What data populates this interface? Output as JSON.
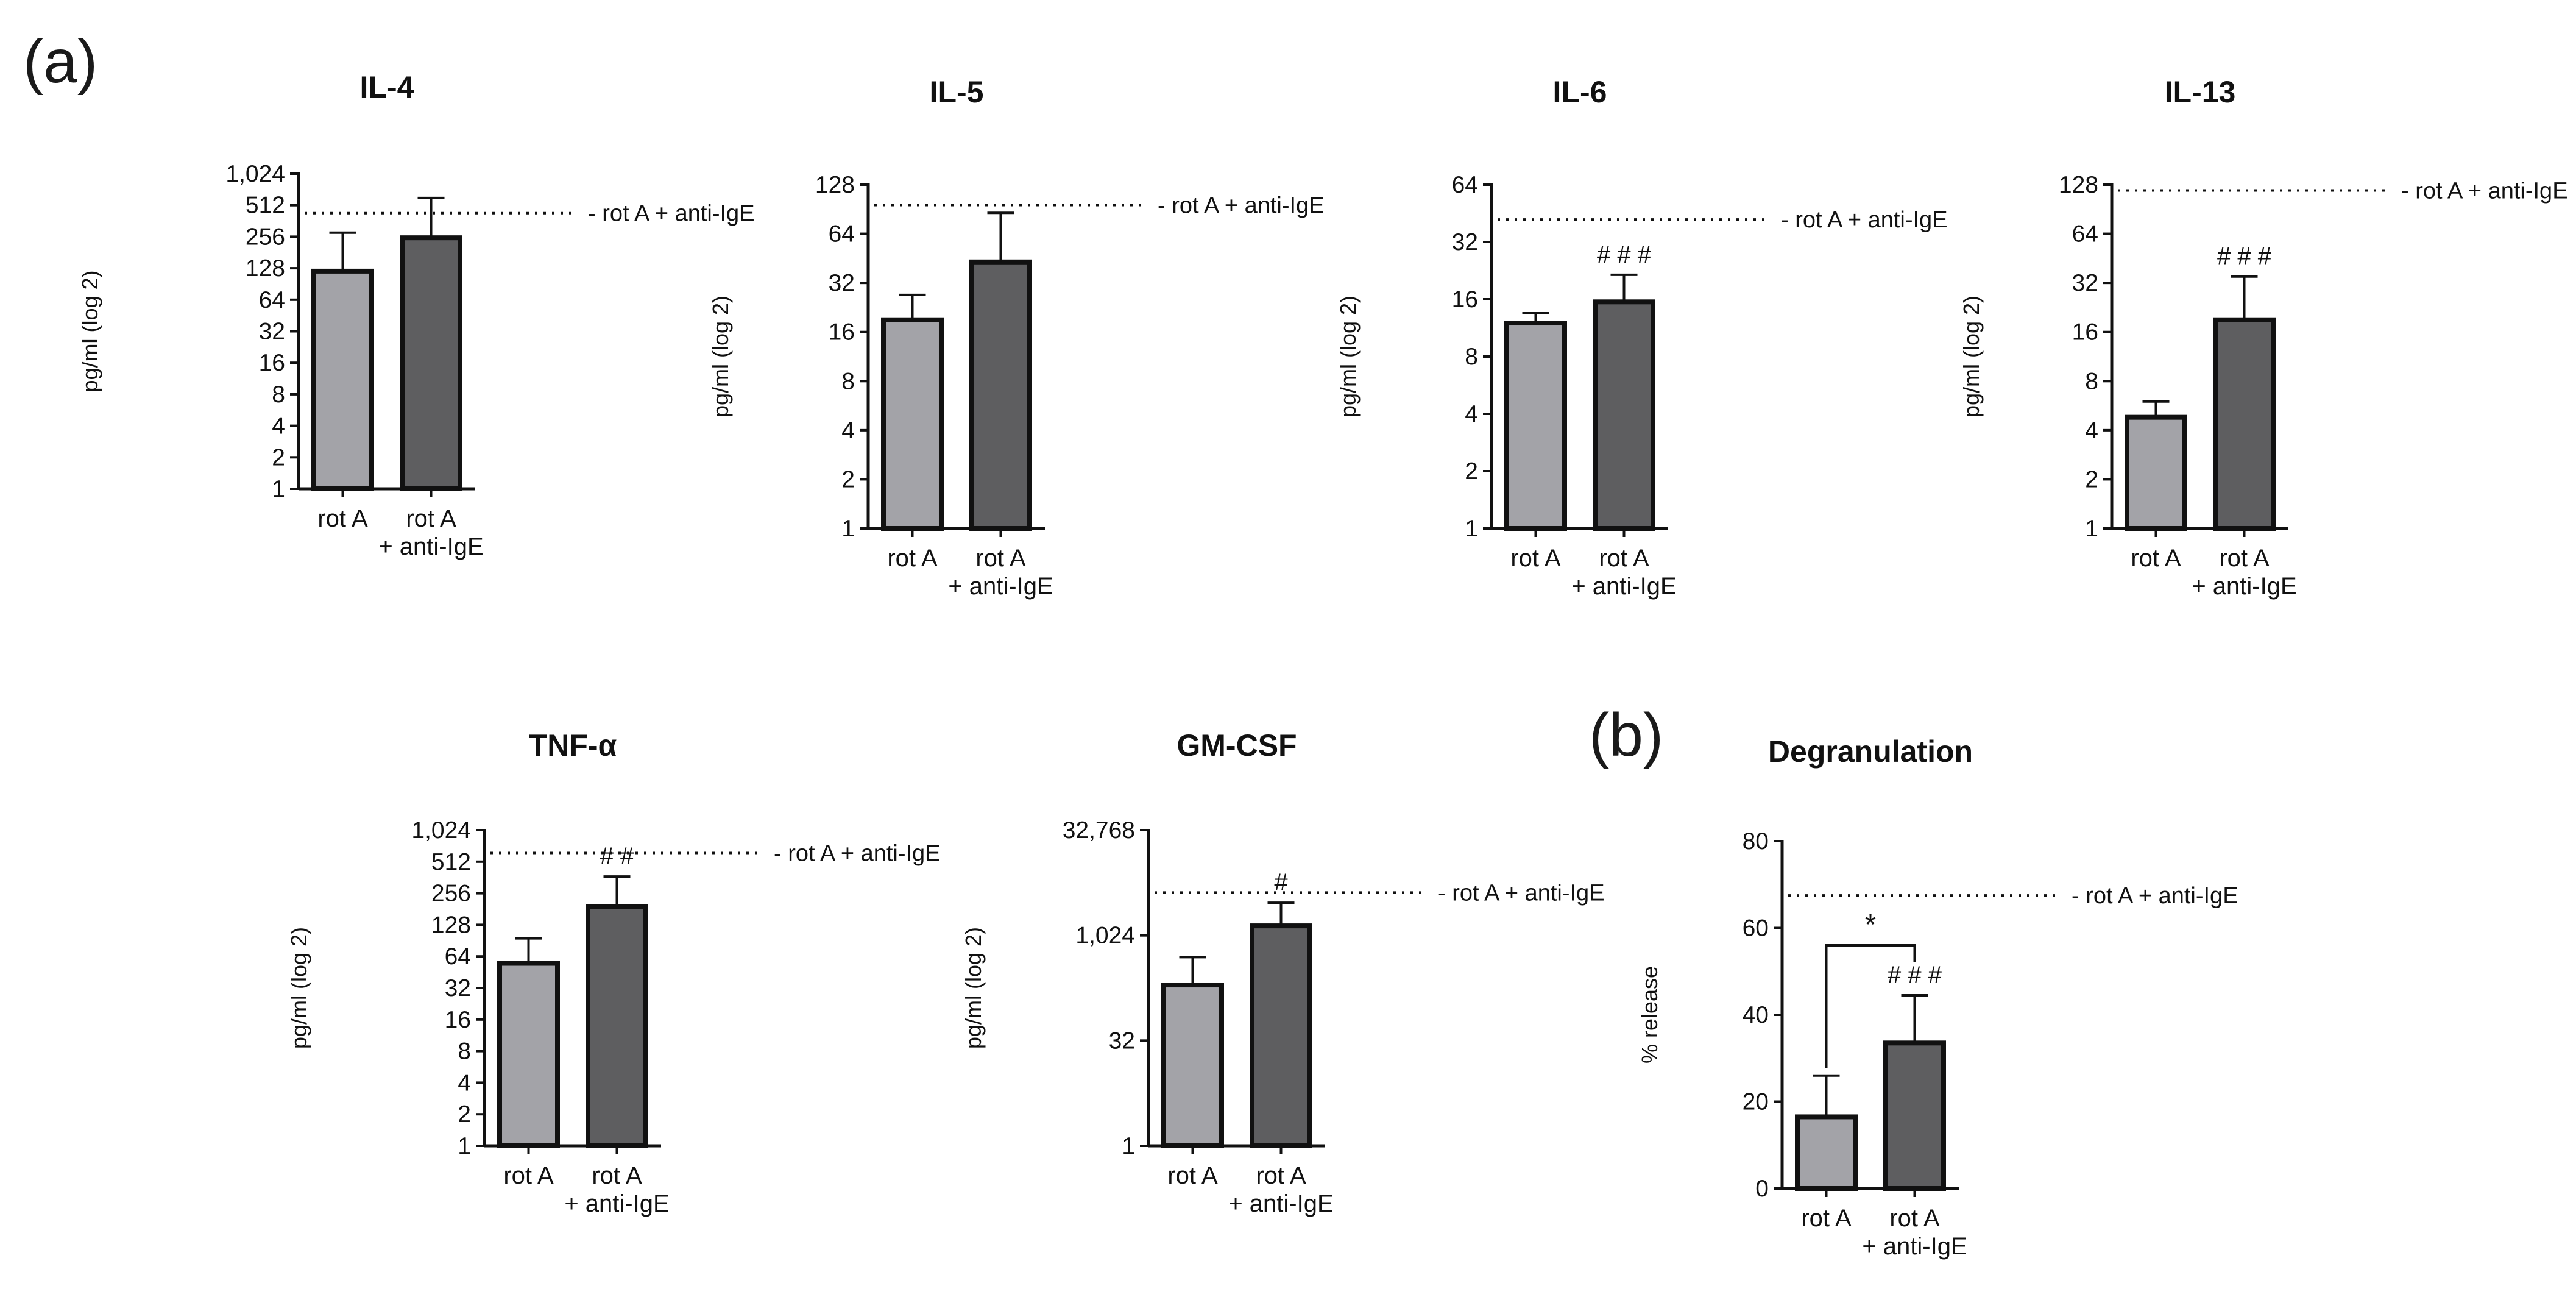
{
  "panel_labels": {
    "a": "(a)",
    "b": "(b)"
  },
  "colors": {
    "bar_rotA": "#a3a3a8",
    "bar_rotA_antiIgE": "#5e5e60",
    "axis": "#111111"
  },
  "chart_data": [
    {
      "id": "il4",
      "type": "bar",
      "title": "IL-4",
      "scale": "log2",
      "ylabel": "pg/ml (log 2)",
      "ylim": [
        1,
        1024
      ],
      "yticks": [
        1,
        2,
        4,
        8,
        16,
        32,
        64,
        128,
        256,
        512,
        1024
      ],
      "ytick_labels": [
        "1",
        "2",
        "4",
        "8",
        "16",
        "32",
        "64",
        "128",
        "256",
        "512",
        "1,024"
      ],
      "categories": [
        "rot A",
        "rot A\n+ anti-IgE"
      ],
      "values": [
        120,
        250
      ],
      "errors_upper": [
        280,
        600
      ],
      "reference": {
        "label": "- rot A + anti-IgE",
        "value": 430
      },
      "annotations": []
    },
    {
      "id": "il5",
      "type": "bar",
      "title": "IL-5",
      "scale": "log2",
      "ylabel": "pg/ml (log 2)",
      "ylim": [
        1,
        128
      ],
      "yticks": [
        1,
        2,
        4,
        8,
        16,
        32,
        64,
        128
      ],
      "ytick_labels": [
        "1",
        "2",
        "4",
        "8",
        "16",
        "32",
        "64",
        "128"
      ],
      "categories": [
        "rot A",
        "rot A\n+ anti-IgE"
      ],
      "values": [
        19,
        43
      ],
      "errors_upper": [
        27,
        86
      ],
      "reference": {
        "label": "- rot A + anti-IgE",
        "value": 96
      },
      "annotations": []
    },
    {
      "id": "il6",
      "type": "bar",
      "title": "IL-6",
      "scale": "log2",
      "ylabel": "pg/ml (log 2)",
      "ylim": [
        1,
        64
      ],
      "yticks": [
        1,
        2,
        4,
        8,
        16,
        32,
        64
      ],
      "ytick_labels": [
        "1",
        "2",
        "4",
        "8",
        "16",
        "32",
        "64"
      ],
      "categories": [
        "rot A",
        "rot A\n+ anti-IgE"
      ],
      "values": [
        12,
        15.5
      ],
      "errors_upper": [
        13.5,
        21.5
      ],
      "reference": {
        "label": "- rot A + anti-IgE",
        "value": 42
      },
      "annotations": [
        {
          "text": "# # #",
          "category": 1
        }
      ]
    },
    {
      "id": "il13",
      "type": "bar",
      "title": "IL-13",
      "scale": "log2",
      "ylabel": "pg/ml (log 2)",
      "ylim": [
        1,
        128
      ],
      "yticks": [
        1,
        2,
        4,
        8,
        16,
        32,
        64,
        128
      ],
      "ytick_labels": [
        "1",
        "2",
        "4",
        "8",
        "16",
        "32",
        "64",
        "128"
      ],
      "categories": [
        "rot A",
        "rot A\n+ anti-IgE"
      ],
      "values": [
        4.8,
        19
      ],
      "errors_upper": [
        6,
        35
      ],
      "reference": {
        "label": "- rot A + anti-IgE",
        "value": 118
      },
      "annotations": [
        {
          "text": "# # #",
          "category": 1
        }
      ]
    },
    {
      "id": "tnfa",
      "type": "bar",
      "title": "TNF-α",
      "scale": "log2",
      "ylabel": "pg/ml (log 2)",
      "ylim": [
        1,
        1024
      ],
      "yticks": [
        1,
        2,
        4,
        8,
        16,
        32,
        64,
        128,
        256,
        512,
        1024
      ],
      "ytick_labels": [
        "1",
        "2",
        "4",
        "8",
        "16",
        "32",
        "64",
        "128",
        "256",
        "512",
        "1,024"
      ],
      "categories": [
        "rot A",
        "rot A\n+ anti-IgE"
      ],
      "values": [
        55,
        190
      ],
      "errors_upper": [
        95,
        370
      ],
      "reference": {
        "label": "- rot A + anti-IgE",
        "value": 620
      },
      "annotations": [
        {
          "text": "# #",
          "category": 1
        }
      ]
    },
    {
      "id": "gmcsf",
      "type": "bar",
      "title": "GM-CSF",
      "scale": "log2",
      "ylabel": "pg/ml (log 2)",
      "ylim": [
        1,
        32768
      ],
      "yticks": [
        1,
        32,
        1024,
        32768
      ],
      "ytick_labels": [
        "1",
        "32",
        "1,024",
        "32,768"
      ],
      "categories": [
        "rot A",
        "rot A\n+ anti-IgE"
      ],
      "values": [
        200,
        1400
      ],
      "errors_upper": [
        500,
        3000
      ],
      "reference": {
        "label": "- rot A + anti-IgE",
        "value": 4200
      },
      "annotations": [
        {
          "text": "#",
          "category": 1
        }
      ]
    },
    {
      "id": "degranulation",
      "type": "bar",
      "title": "Degranulation",
      "scale": "linear",
      "ylabel": "% release",
      "ylim": [
        0,
        80
      ],
      "yticks": [
        0,
        20,
        40,
        60,
        80
      ],
      "ytick_labels": [
        "0",
        "20",
        "40",
        "60",
        "80"
      ],
      "categories": [
        "rot A",
        "rot A\n+ anti-IgE"
      ],
      "values": [
        16.5,
        33.5
      ],
      "errors_upper": [
        26,
        44.5
      ],
      "reference": {
        "label": "- rot A + anti-IgE",
        "value": 67.5
      },
      "annotations": [
        {
          "text": "# # #",
          "category": 1
        }
      ],
      "significance": {
        "text": "*",
        "between": [
          0,
          1
        ],
        "y": 56
      }
    }
  ]
}
